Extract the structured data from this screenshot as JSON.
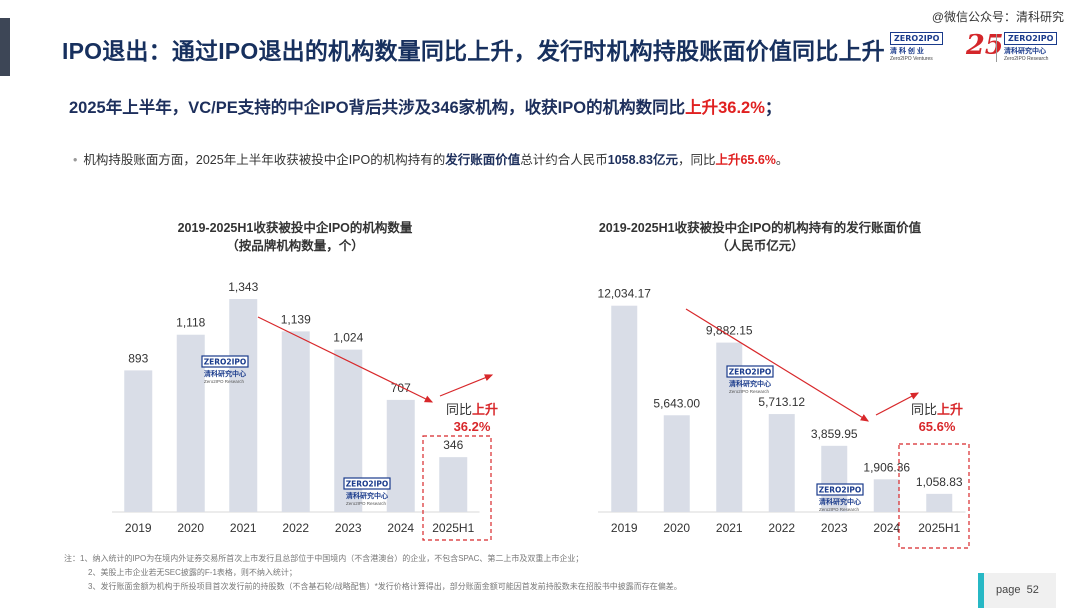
{
  "header": {
    "title": "IPO退出：通过IPO退出的机构数量同比上升，发行时机构持股账面价值同比上升",
    "watermark": "@微信公众号：清科研究"
  },
  "logos": {
    "left": {
      "tag": "ZERO2IPO",
      "cn": "清 科 创 业",
      "en": "Zero2IPO Ventures"
    },
    "badge": "25",
    "right": {
      "tag": "ZERO2IPO",
      "cn": "清科研究中心",
      "en": "Zero2IPO Research"
    }
  },
  "summary": {
    "part1": "2025年上半年，VC/PE支持的中企IPO背后共涉及346家机构，收获IPO的机构数同比",
    "highlight": "上升36.2%",
    "part2": "；"
  },
  "bullet": {
    "t1": "机构持股账面方面，2025年上半年收获被投中企IPO的机构持有的",
    "b1": "发行账面价值",
    "t2": "总计约合人民币",
    "b2": "1058.83亿元",
    "t3": "，同比",
    "b3": "上升65.6%",
    "t4": "。"
  },
  "chart_data": [
    {
      "type": "bar",
      "title": "2019-2025H1收获被投中企IPO的机构数量",
      "subtitle": "（按品牌机构数量，个）",
      "categories": [
        "2019",
        "2020",
        "2021",
        "2022",
        "2023",
        "2024",
        "2025H1"
      ],
      "values": [
        893,
        1118,
        1343,
        1139,
        1024,
        707,
        346
      ],
      "value_labels": [
        "893",
        "1,118",
        "1,343",
        "1,139",
        "1,024",
        "707",
        "346"
      ],
      "ylim": [
        0,
        1400
      ],
      "bar_color": "#d9dde7",
      "trend_color": "#d8282b",
      "annotation": {
        "prefix": "同比",
        "direction": "上升",
        "value": "36.2%"
      },
      "watermark": {
        "tag": "ZERO2IPO",
        "cn": "清科研究中心",
        "en": "Zero2IPO Research"
      }
    },
    {
      "type": "bar",
      "title": "2019-2025H1收获被投中企IPO的机构持有的发行账面价值",
      "subtitle": "（人民币亿元）",
      "categories": [
        "2019",
        "2020",
        "2021",
        "2022",
        "2023",
        "2024",
        "2025H1"
      ],
      "values": [
        12034.17,
        5643.0,
        9882.15,
        5713.12,
        3859.95,
        1906.36,
        1058.83
      ],
      "value_labels": [
        "12,034.17",
        "5,643.00",
        "9,882.15",
        "5,713.12",
        "3,859.95",
        "1,906.36",
        "1,058.83"
      ],
      "ylim": [
        0,
        12600
      ],
      "bar_color": "#d9dde7",
      "trend_color": "#d8282b",
      "annotation": {
        "prefix": "同比",
        "direction": "上升",
        "value": "65.6%"
      },
      "watermark": {
        "tag": "ZERO2IPO",
        "cn": "清科研究中心",
        "en": "Zero2IPO Research"
      }
    }
  ],
  "notes": {
    "line1": "注：1、纳入统计的IPO为在境内外证券交易所首次上市发行且总部位于中国境内（不含港澳台）的企业，不包含SPAC、第二上市及双重上市企业；",
    "line2": "2、美股上市企业若无SEC披露的F-1表格，则不纳入统计；",
    "line3": "3、发行账面金额为机构于所投项目首次发行前的持股数（不含基石轮/战略配售）*发行价格计算得出，部分账面金额可能因首发前持股数未在招股书中披露而存在偏差。"
  },
  "footer": {
    "page_label": "page",
    "page_number": "52"
  }
}
